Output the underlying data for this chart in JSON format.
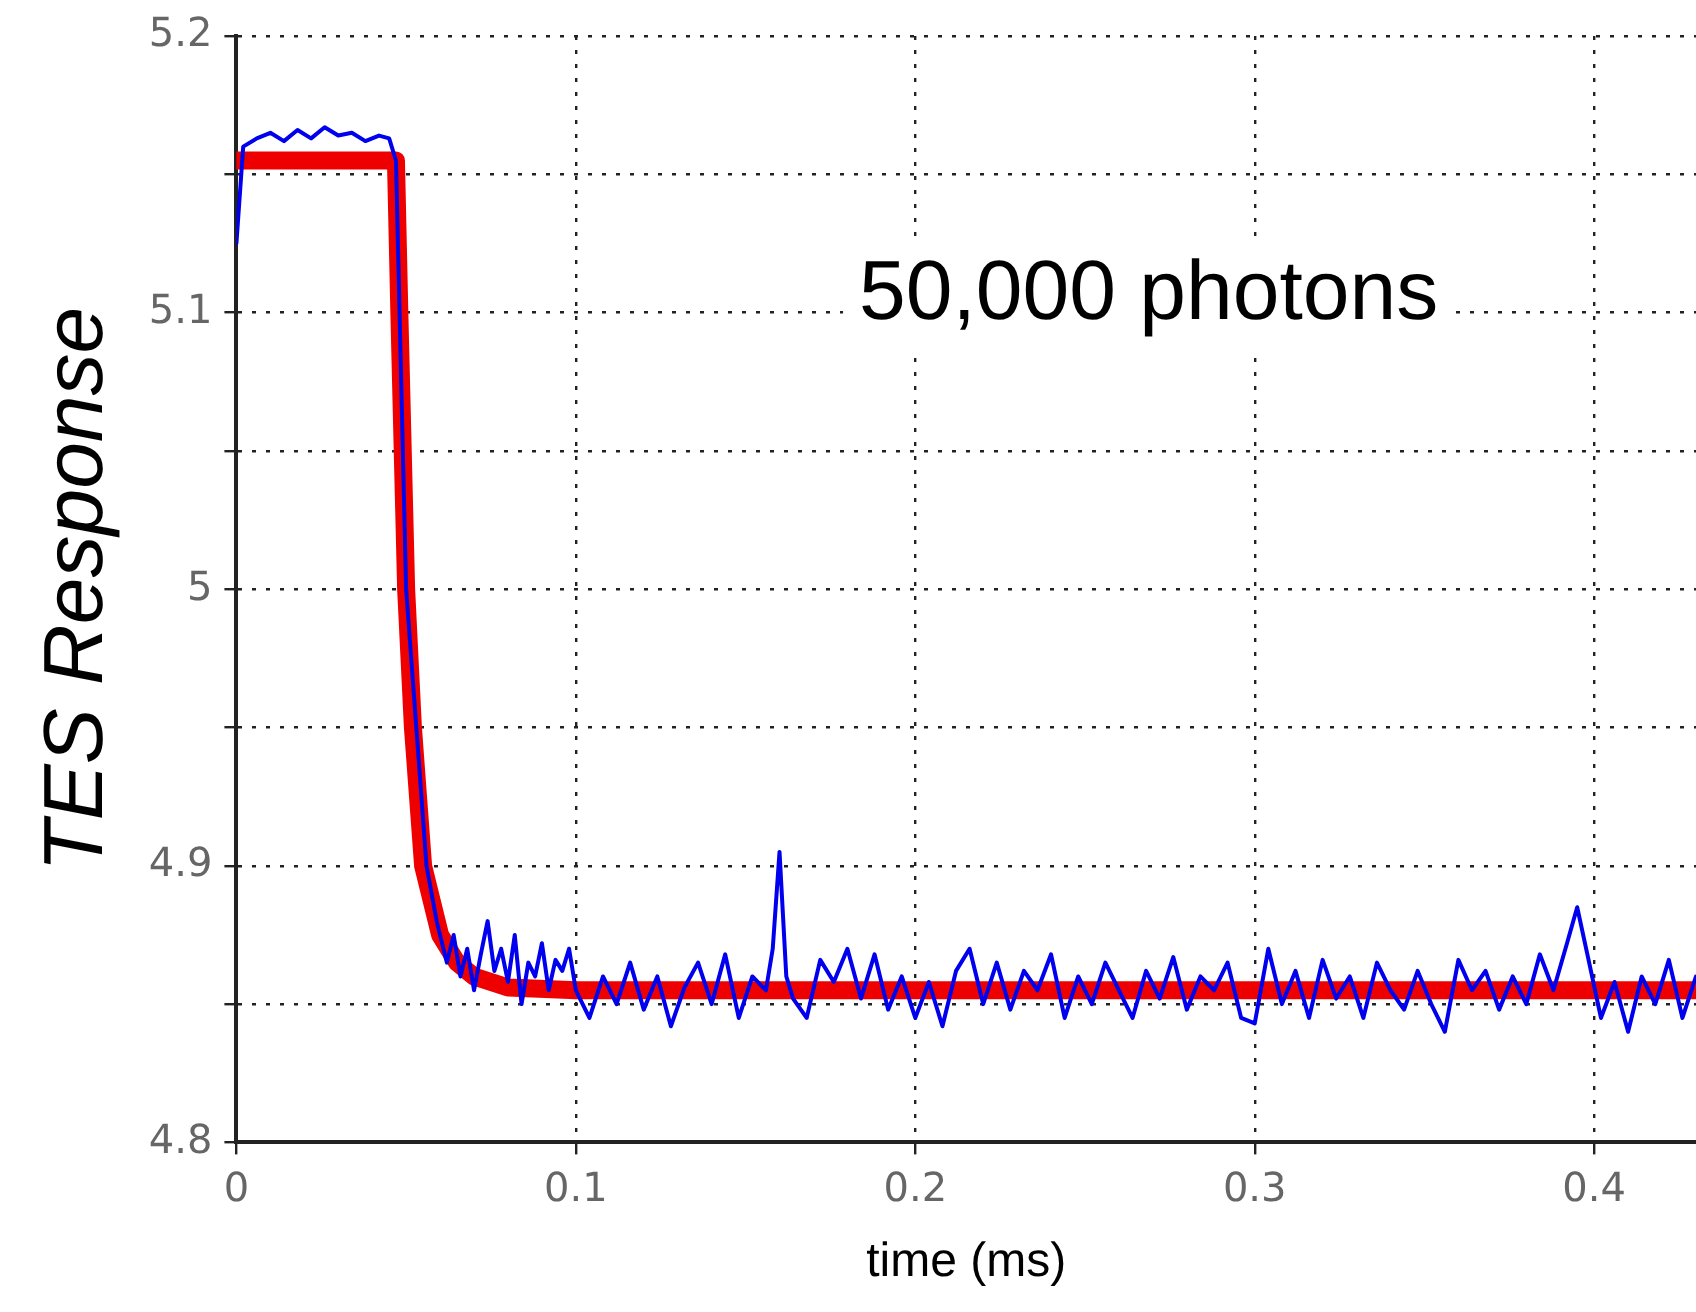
{
  "chart_data": {
    "type": "line",
    "xlabel": "time (ms)",
    "ylabel": "TES Response",
    "annotations": [
      "50,000 photons"
    ],
    "xlim": [
      0,
      0.43
    ],
    "ylim": [
      4.8,
      5.2
    ],
    "xticks": [
      0,
      0.1,
      0.2,
      0.3,
      0.4
    ],
    "yticks": [
      4.8,
      {
        "value": 4.85,
        "label": null
      },
      4.9,
      {
        "value": 4.95,
        "label": null
      },
      5,
      {
        "value": 5.05,
        "label": null
      },
      5.1,
      {
        "value": 5.15,
        "label": null
      },
      5.2
    ],
    "grid": true,
    "legend": false,
    "marker": "none",
    "line_style": "solid",
    "series": [
      {
        "color": "#0000ee",
        "x": [
          0,
          0.002,
          0.006,
          0.01,
          0.014,
          0.018,
          0.022,
          0.026,
          0.03,
          0.034,
          0.038,
          0.042,
          0.045,
          0.047,
          0.05,
          0.053,
          0.056,
          0.059,
          0.062,
          0.064,
          0.066,
          0.068,
          0.07,
          0.072,
          0.074,
          0.076,
          0.078,
          0.08,
          0.082,
          0.084,
          0.086,
          0.088,
          0.09,
          0.092,
          0.094,
          0.096,
          0.098,
          0.1,
          0.104,
          0.108,
          0.112,
          0.116,
          0.12,
          0.124,
          0.128,
          0.132,
          0.136,
          0.14,
          0.144,
          0.148,
          0.152,
          0.156,
          0.158,
          0.16,
          0.162,
          0.164,
          0.168,
          0.172,
          0.176,
          0.18,
          0.184,
          0.188,
          0.192,
          0.196,
          0.2,
          0.204,
          0.208,
          0.212,
          0.216,
          0.22,
          0.224,
          0.228,
          0.232,
          0.236,
          0.24,
          0.244,
          0.248,
          0.252,
          0.256,
          0.26,
          0.264,
          0.268,
          0.272,
          0.276,
          0.28,
          0.284,
          0.288,
          0.292,
          0.296,
          0.3,
          0.304,
          0.308,
          0.312,
          0.316,
          0.32,
          0.324,
          0.328,
          0.332,
          0.336,
          0.34,
          0.344,
          0.348,
          0.352,
          0.356,
          0.36,
          0.364,
          0.368,
          0.372,
          0.376,
          0.38,
          0.384,
          0.388,
          0.392,
          0.395,
          0.398,
          0.402,
          0.406,
          0.41,
          0.414,
          0.418,
          0.422,
          0.426,
          0.43
        ],
        "values": [
          5.125,
          5.16,
          5.163,
          5.165,
          5.162,
          5.166,
          5.163,
          5.167,
          5.164,
          5.165,
          5.162,
          5.164,
          5.163,
          5.155,
          5.0,
          4.95,
          4.9,
          4.88,
          4.865,
          4.875,
          4.86,
          4.87,
          4.855,
          4.868,
          4.88,
          4.862,
          4.87,
          4.858,
          4.875,
          4.85,
          4.865,
          4.86,
          4.872,
          4.855,
          4.866,
          4.862,
          4.87,
          4.855,
          4.845,
          4.86,
          4.85,
          4.865,
          4.848,
          4.86,
          4.842,
          4.856,
          4.865,
          4.85,
          4.868,
          4.845,
          4.86,
          4.855,
          4.87,
          4.905,
          4.86,
          4.852,
          4.845,
          4.866,
          4.858,
          4.87,
          4.852,
          4.868,
          4.848,
          4.86,
          4.845,
          4.858,
          4.842,
          4.862,
          4.87,
          4.85,
          4.865,
          4.848,
          4.862,
          4.855,
          4.868,
          4.845,
          4.86,
          4.85,
          4.865,
          4.855,
          4.845,
          4.862,
          4.852,
          4.867,
          4.848,
          4.86,
          4.855,
          4.865,
          4.845,
          4.843,
          4.87,
          4.85,
          4.862,
          4.845,
          4.866,
          4.852,
          4.86,
          4.845,
          4.865,
          4.855,
          4.848,
          4.862,
          4.85,
          4.84,
          4.866,
          4.855,
          4.862,
          4.848,
          4.86,
          4.85,
          4.868,
          4.855,
          4.872,
          4.885,
          4.868,
          4.845,
          4.858,
          4.84,
          4.86,
          4.85,
          4.866,
          4.845,
          4.86
        ]
      },
      {
        "color": "#ee0000",
        "x": [
          0,
          0.047,
          0.048,
          0.05,
          0.052,
          0.055,
          0.06,
          0.065,
          0.07,
          0.08,
          0.1,
          0.43
        ],
        "values": [
          5.155,
          5.155,
          5.1,
          5.0,
          4.95,
          4.9,
          4.875,
          4.865,
          4.86,
          4.856,
          4.855,
          4.855
        ]
      }
    ]
  }
}
